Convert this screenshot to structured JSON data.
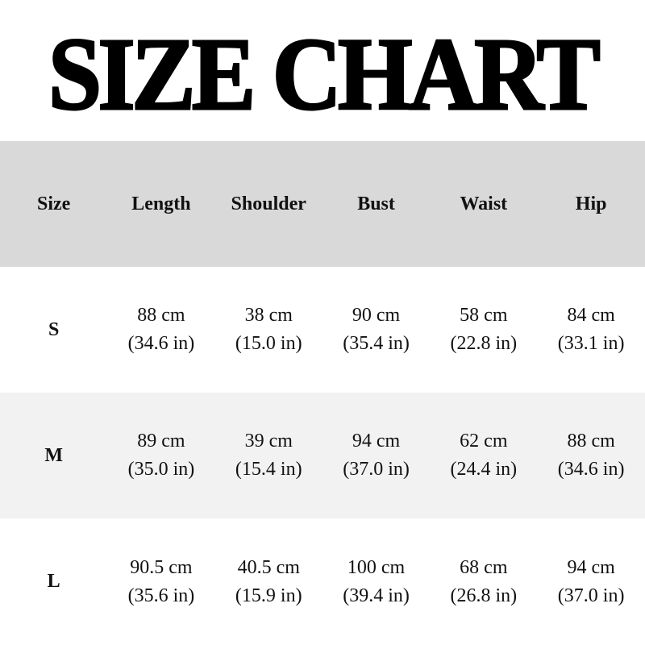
{
  "title": "SIZE CHART",
  "colors": {
    "header_bg": "#d9d9d9",
    "alt_row_bg": "#f2f2f2",
    "text": "#111111"
  },
  "headers": [
    "Size",
    "Length",
    "Shoulder",
    "Bust",
    "Waist",
    "Hip"
  ],
  "rows": [
    {
      "size": "S",
      "values": [
        [
          "88 cm",
          "(34.6 in)"
        ],
        [
          "38 cm",
          "(15.0 in)"
        ],
        [
          "90 cm",
          "(35.4 in)"
        ],
        [
          "58 cm",
          "(22.8 in)"
        ],
        [
          "84 cm",
          "(33.1 in)"
        ]
      ]
    },
    {
      "size": "M",
      "values": [
        [
          "89 cm",
          "(35.0 in)"
        ],
        [
          "39 cm",
          "(15.4 in)"
        ],
        [
          "94 cm",
          "(37.0 in)"
        ],
        [
          "62 cm",
          "(24.4 in)"
        ],
        [
          "88 cm",
          "(34.6 in)"
        ]
      ]
    },
    {
      "size": "L",
      "values": [
        [
          "90.5 cm",
          "(35.6 in)"
        ],
        [
          "40.5 cm",
          "(15.9 in)"
        ],
        [
          "100 cm",
          "(39.4 in)"
        ],
        [
          "68 cm",
          "(26.8 in)"
        ],
        [
          "94 cm",
          "(37.0 in)"
        ]
      ]
    }
  ]
}
